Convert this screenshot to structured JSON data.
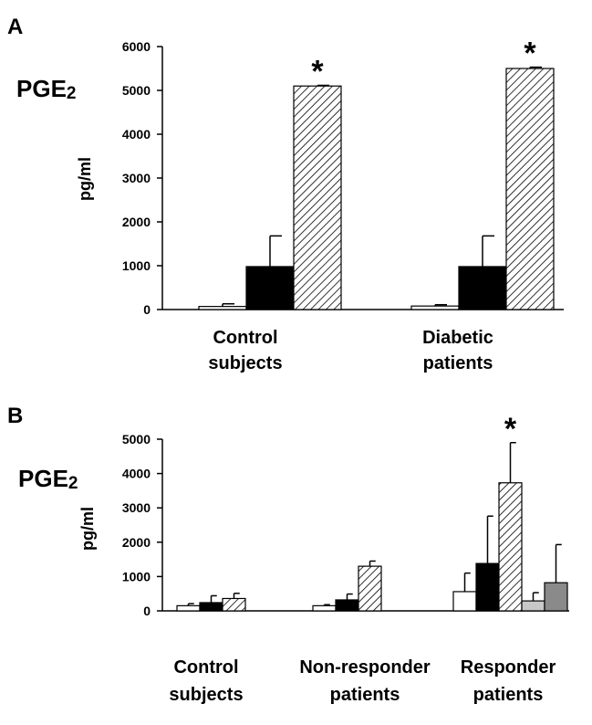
{
  "colors": {
    "white_bar": "#ffffff",
    "black_bar": "#000000",
    "hatched_bar": "hatched",
    "light_gray_bar": "#c8c8c8",
    "dark_gray_bar": "#8a8a8a"
  },
  "chart_data": [
    {
      "type": "bar",
      "panel": "A",
      "analyte": "PGE",
      "analyte_subscript": "2",
      "ylabel": "pg/ml",
      "ylim": [
        0,
        6000
      ],
      "yticks": [
        "0",
        "1000",
        "2000",
        "3000",
        "4000",
        "5000",
        "6000"
      ],
      "categories": [
        [
          "Control",
          "subjects"
        ],
        [
          "Diabetic",
          "patients"
        ]
      ],
      "series": [
        {
          "style": "white",
          "values": [
            70,
            80
          ],
          "errors": [
            60,
            30
          ]
        },
        {
          "style": "black",
          "values": [
            980,
            980
          ],
          "errors": [
            700,
            700
          ]
        },
        {
          "style": "hatched",
          "values": [
            5100,
            5500
          ],
          "errors": [
            15,
            30
          ]
        }
      ],
      "annotations": [
        {
          "text": "*",
          "category": 0,
          "series": 2
        },
        {
          "text": "*",
          "category": 1,
          "series": 2
        }
      ]
    },
    {
      "type": "bar",
      "panel": "B",
      "analyte": "PGE",
      "analyte_subscript": "2",
      "ylabel": "pg/ml",
      "ylim": [
        0,
        5000
      ],
      "yticks": [
        "0",
        "1000",
        "2000",
        "3000",
        "4000",
        "5000"
      ],
      "categories": [
        [
          "Control",
          "subjects"
        ],
        [
          "Non-responder",
          "patients"
        ],
        [
          "Responder",
          "patients"
        ]
      ],
      "series": [
        {
          "style": "white",
          "values": [
            150,
            150,
            560
          ],
          "errors": [
            60,
            30,
            540
          ]
        },
        {
          "style": "black",
          "values": [
            240,
            320,
            1380
          ],
          "errors": [
            200,
            170,
            1380
          ]
        },
        {
          "style": "hatched",
          "values": [
            360,
            1300,
            3730
          ],
          "errors": [
            150,
            150,
            1170
          ]
        },
        {
          "style": "lightgray",
          "values": [
            null,
            null,
            290
          ],
          "errors": [
            null,
            null,
            240
          ]
        },
        {
          "style": "darkgray",
          "values": [
            null,
            null,
            820
          ],
          "errors": [
            null,
            null,
            1110
          ]
        }
      ],
      "annotations": [
        {
          "text": "*",
          "category": 2,
          "series": 2
        }
      ]
    }
  ]
}
